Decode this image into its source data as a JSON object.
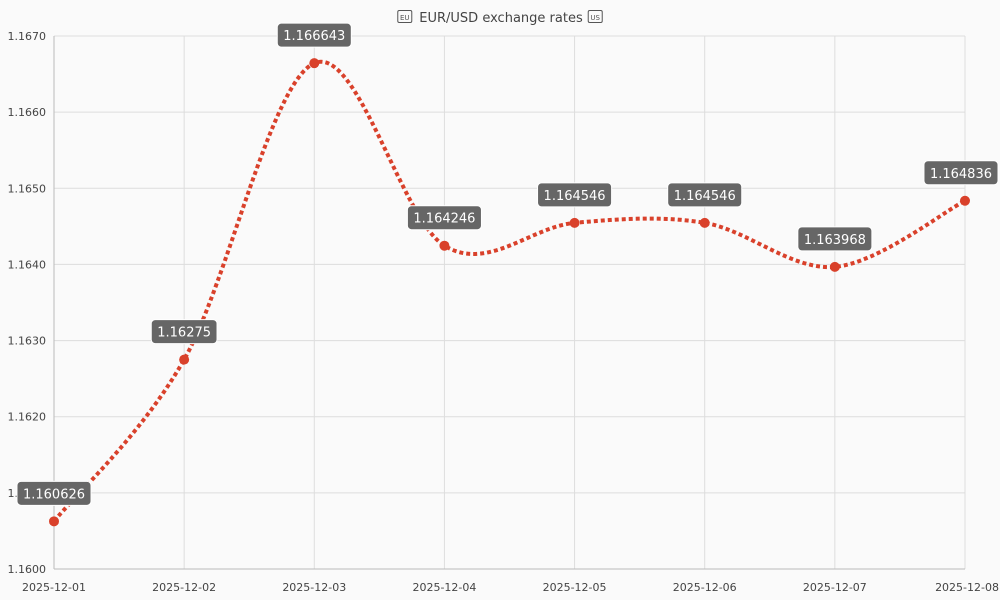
{
  "chart_data": {
    "type": "line",
    "title": "EUR/USD exchange rates",
    "title_icons": [
      "eu-flag-icon",
      "us-flag-icon"
    ],
    "x": [
      "2025-12-01",
      "2025-12-02",
      "2025-12-03",
      "2025-12-04",
      "2025-12-05",
      "2025-12-06",
      "2025-12-07",
      "2025-12-08"
    ],
    "series": [
      {
        "values": [
          1.160626,
          1.16275,
          1.166643,
          1.164246,
          1.164546,
          1.164546,
          1.163968,
          1.164836
        ],
        "labels": [
          "1.160626",
          "1.16275",
          "1.166643",
          "1.164246",
          "1.164546",
          "1.164546",
          "1.163968",
          ""
        ],
        "color": "#d9412b",
        "line_style": "dotted",
        "curve": "smooth"
      }
    ],
    "y_ticks": [
      "1.1600",
      "1.1610",
      "1.1620",
      "1.1630",
      "1.1640",
      "1.1650",
      "1.1660",
      "1.1670"
    ],
    "ylim": [
      1.16,
      1.167
    ],
    "grid": true,
    "label_box_color": "#666666"
  }
}
